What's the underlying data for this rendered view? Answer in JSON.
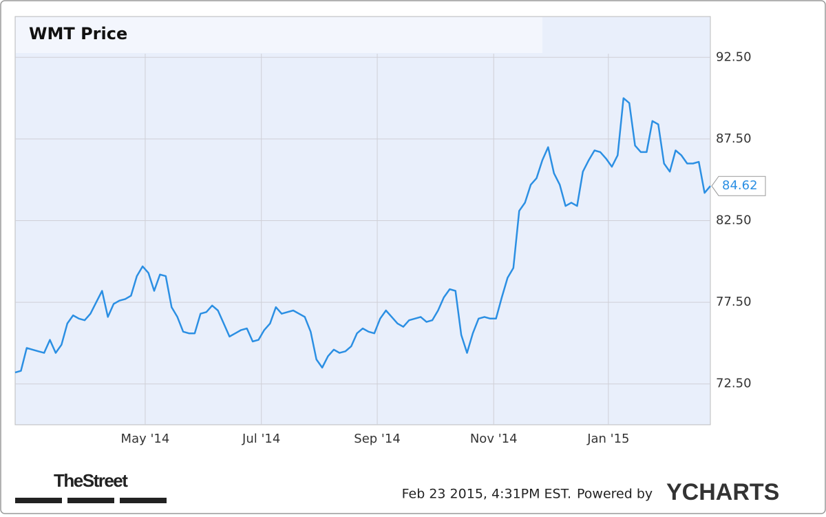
{
  "chart_data": {
    "type": "line",
    "title": "WMT Price",
    "series": [
      {
        "name": "WMT",
        "color": "#2b8fe3",
        "values": [
          73.2,
          73.3,
          74.7,
          74.6,
          74.5,
          74.4,
          75.2,
          74.4,
          74.9,
          76.2,
          76.7,
          76.5,
          76.4,
          76.8,
          77.5,
          78.2,
          76.6,
          77.4,
          77.6,
          77.7,
          77.9,
          79.1,
          79.7,
          79.3,
          78.2,
          79.2,
          79.1,
          77.2,
          76.6,
          75.7,
          75.6,
          75.6,
          76.8,
          76.9,
          77.3,
          77.0,
          76.2,
          75.4,
          75.6,
          75.8,
          75.9,
          75.1,
          75.2,
          75.8,
          76.2,
          77.2,
          76.8,
          76.9,
          77.0,
          76.8,
          76.6,
          75.7,
          74.0,
          73.5,
          74.2,
          74.6,
          74.4,
          74.5,
          74.8,
          75.6,
          75.9,
          75.7,
          75.6,
          76.5,
          77.0,
          76.6,
          76.2,
          76.0,
          76.4,
          76.5,
          76.6,
          76.3,
          76.4,
          77.0,
          77.8,
          78.3,
          78.2,
          75.5,
          74.4,
          75.6,
          76.5,
          76.6,
          76.5,
          76.5,
          77.8,
          79.0,
          79.6,
          83.1,
          83.6,
          84.7,
          85.1,
          86.2,
          87.0,
          85.4,
          84.7,
          83.4,
          83.6,
          83.4,
          85.5,
          86.2,
          86.8,
          86.7,
          86.3,
          85.8,
          86.5,
          90.0,
          89.7,
          87.1,
          86.7,
          86.7,
          88.6,
          88.4,
          86.0,
          85.5,
          86.8,
          86.5,
          86.0,
          86.0,
          86.1,
          84.2,
          84.62
        ]
      }
    ],
    "xlim": [
      0,
      120
    ],
    "xticks": [
      {
        "value": 22.45,
        "label": "May '14"
      },
      {
        "value": 42.5,
        "label": "Jul '14"
      },
      {
        "value": 62.5,
        "label": "Sep '14"
      },
      {
        "value": 82.6,
        "label": "Nov '14"
      },
      {
        "value": 102.4,
        "label": "Jan '15"
      }
    ],
    "ylim": [
      70,
      95
    ],
    "yticks": [
      {
        "value": 72.5,
        "label": "72.50"
      },
      {
        "value": 77.5,
        "label": "77.50"
      },
      {
        "value": 82.5,
        "label": "82.50"
      },
      {
        "value": 87.5,
        "label": "87.50"
      },
      {
        "value": 92.5,
        "label": "92.50"
      }
    ],
    "grid": true
  },
  "footer": {
    "brand": "TheStreet",
    "timestamp": "Feb 23 2015, 4:31PM EST.",
    "powered_by": "Powered by",
    "provider": "YCHARTS"
  }
}
